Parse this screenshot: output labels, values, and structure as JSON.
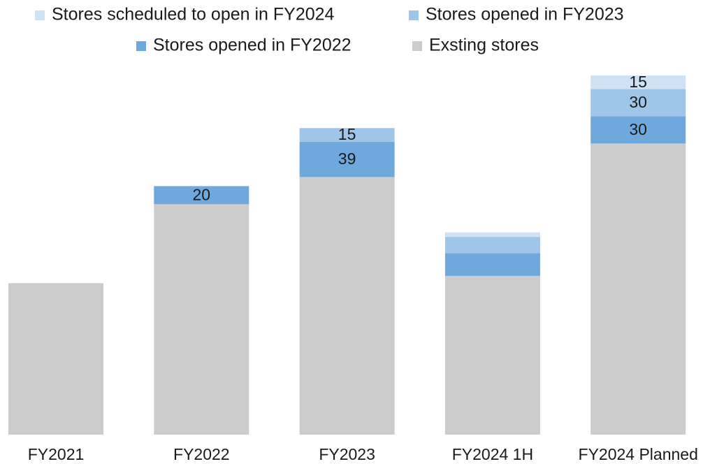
{
  "chart_data": {
    "type": "stacked_bar",
    "categories": [
      "FY2021",
      "FY2022",
      "FY2023",
      "FY2024 1H",
      "FY2024 Planned"
    ],
    "series": [
      {
        "name": "Stores scheduled to open in FY2024",
        "color": "#cfe2f3",
        "values": [
          null,
          null,
          null,
          5,
          15
        ],
        "value_labels": [
          null,
          null,
          null,
          null,
          "15"
        ]
      },
      {
        "name": "Stores opened in FY2023",
        "color": "#9fc5e8",
        "values": [
          null,
          null,
          15,
          18,
          30
        ],
        "value_labels": [
          null,
          null,
          "15",
          null,
          "30"
        ]
      },
      {
        "name": "Stores opened in FY2022",
        "color": "#6fa8dc",
        "values": [
          null,
          20,
          39,
          25,
          30
        ],
        "value_labels": [
          null,
          "20",
          "39",
          null,
          "30"
        ]
      },
      {
        "name": "Exsting stores",
        "color": "#cccccc",
        "values": [
          167,
          254,
          284,
          175,
          321
        ],
        "value_labels": [
          null,
          null,
          null,
          null,
          null
        ]
      }
    ]
  }
}
